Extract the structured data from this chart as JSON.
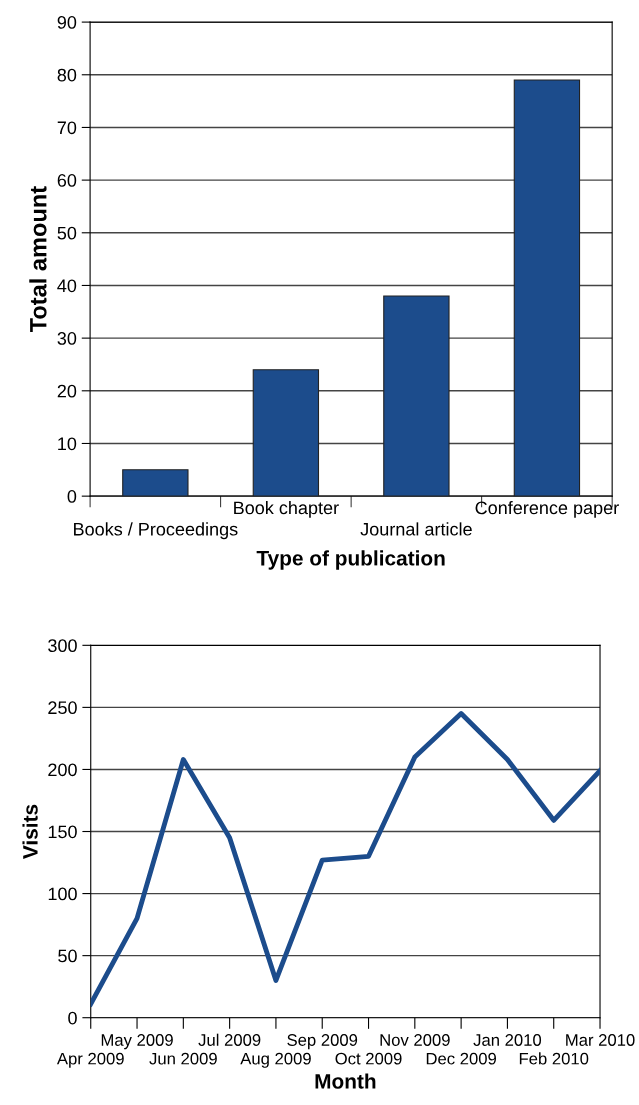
{
  "chart_data": [
    {
      "type": "bar",
      "xlabel": "Type of publication",
      "ylabel": "Total amount",
      "categories": [
        "Books / Proceedings",
        "Book chapter",
        "Journal article",
        "Conference paper"
      ],
      "values": [
        5,
        24,
        38,
        79
      ],
      "color": "#1c4c8c",
      "ylim": [
        0,
        90
      ],
      "yticks": [
        0,
        10,
        20,
        30,
        40,
        50,
        60,
        70,
        80,
        90
      ],
      "grid": "y"
    },
    {
      "type": "line",
      "xlabel": "Month",
      "ylabel": "Visits",
      "categories": [
        "Apr 2009",
        "May 2009",
        "Jun 2009",
        "Jul 2009",
        "Aug 2009",
        "Sep 2009",
        "Oct 2009",
        "Nov 2009",
        "Dec 2009",
        "Jan 2010",
        "Feb 2010",
        "Mar 2010"
      ],
      "values": [
        11,
        80,
        208,
        145,
        30,
        127,
        130,
        210,
        245,
        208,
        159,
        199
      ],
      "color": "#1c4c8c",
      "ylim": [
        0,
        300
      ],
      "yticks": [
        0,
        50,
        100,
        150,
        200,
        250,
        300
      ],
      "grid": "y",
      "marker": "none"
    }
  ]
}
